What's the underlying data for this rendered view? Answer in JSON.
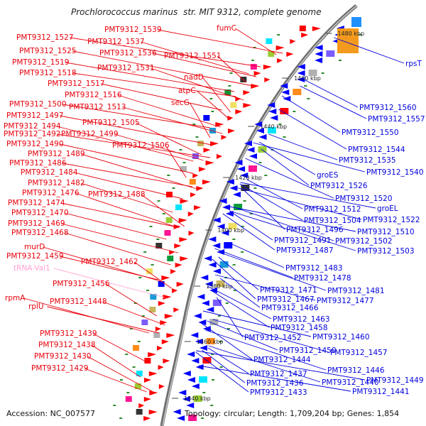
{
  "title_prefix": "Prochlorococcus marinus",
  "title_suffix": "str. MIT 9312, complete genome",
  "accession": "Accession: NC_007577",
  "topology": "Topology: circular; Length: 1,709,204 bp; Genes: 1,854",
  "colors": {
    "forward_label": "#e8000b",
    "reverse_label": "#0000dd",
    "rna_label": "#ff9fd0",
    "backbone": "#888888",
    "forward_arrow": "#ff0000",
    "reverse_arrow": "#0000ff",
    "tick_mark": "#2e8b2e"
  },
  "ticks": [
    {
      "label": "1480 kbp",
      "kbp": 1480
    },
    {
      "label": "1460 kbp",
      "kbp": 1460
    },
    {
      "label": "1440 kbp",
      "kbp": 1440
    },
    {
      "label": "1420 kbp",
      "kbp": 1420
    },
    {
      "label": "1400 kbp",
      "kbp": 1400
    },
    {
      "label": "1380 kbp",
      "kbp": 1380
    },
    {
      "label": "1360 kbp",
      "kbp": 1360
    },
    {
      "label": "1340 kbp",
      "kbp": 1340
    }
  ],
  "forward_labels": [
    {
      "text": "PMT9312_1539",
      "strand": "forward"
    },
    {
      "text": "fumC",
      "strand": "forward"
    },
    {
      "text": "PMT9312_1527",
      "strand": "forward"
    },
    {
      "text": "PMT9312_1537",
      "strand": "forward"
    },
    {
      "text": "PMT9312_1525",
      "strand": "forward"
    },
    {
      "text": "PMT9312_1536",
      "strand": "forward"
    },
    {
      "text": "PMT9312_1551",
      "strand": "forward"
    },
    {
      "text": "PMT9312_1519",
      "strand": "forward"
    },
    {
      "text": "PMT9312_1531",
      "strand": "forward"
    },
    {
      "text": "nadD",
      "strand": "forward"
    },
    {
      "text": "PMT9312_1518",
      "strand": "forward"
    },
    {
      "text": "PMT9312_1517",
      "strand": "forward"
    },
    {
      "text": "atpC",
      "strand": "forward"
    },
    {
      "text": "PMT9312_1516",
      "strand": "forward"
    },
    {
      "text": "secG",
      "strand": "forward"
    },
    {
      "text": "PMT9312_1500",
      "strand": "forward"
    },
    {
      "text": "PMT9312_1513",
      "strand": "forward"
    },
    {
      "text": "PMT9312_1497",
      "strand": "forward"
    },
    {
      "text": "PMT9312_1505",
      "strand": "forward"
    },
    {
      "text": "PMT9312_1494",
      "strand": "forward"
    },
    {
      "text": "PMT9312_1492",
      "strand": "forward"
    },
    {
      "text": "PMT9312_1499",
      "strand": "forward"
    },
    {
      "text": "PMT9312_1490",
      "strand": "forward"
    },
    {
      "text": "PMT9312_1506",
      "strand": "forward"
    },
    {
      "text": "PMT9312_1489",
      "strand": "forward"
    },
    {
      "text": "PMT9312_1486",
      "strand": "forward"
    },
    {
      "text": "PMT9312_1484",
      "strand": "forward"
    },
    {
      "text": "PMT9312_1482",
      "strand": "forward"
    },
    {
      "text": "PMT9312_1488",
      "strand": "forward"
    },
    {
      "text": "PMT9312_1476",
      "strand": "forward"
    },
    {
      "text": "PMT9312_1474",
      "strand": "forward"
    },
    {
      "text": "PMT9312_1470",
      "strand": "forward"
    },
    {
      "text": "PMT9312_1469",
      "strand": "forward"
    },
    {
      "text": "PMT9312_1468",
      "strand": "forward"
    },
    {
      "text": "murD",
      "strand": "forward"
    },
    {
      "text": "PMT9312_1459",
      "strand": "forward"
    },
    {
      "text": "PMT9312_1462",
      "strand": "forward"
    },
    {
      "text": "tRNA-Val1",
      "strand": "rna"
    },
    {
      "text": "PMT9312_1456",
      "strand": "forward"
    },
    {
      "text": "rpmA",
      "strand": "forward"
    },
    {
      "text": "PMT9312_1448",
      "strand": "forward"
    },
    {
      "text": "rplU",
      "strand": "forward"
    },
    {
      "text": "PMT9312_1439",
      "strand": "forward"
    },
    {
      "text": "PMT9312_1438",
      "strand": "forward"
    },
    {
      "text": "PMT9312_1430",
      "strand": "forward"
    },
    {
      "text": "PMT9312_1429",
      "strand": "forward"
    }
  ],
  "reverse_labels": [
    {
      "text": "rpsT"
    },
    {
      "text": "PMT9312_1560"
    },
    {
      "text": "PMT9312_1557"
    },
    {
      "text": "PMT9312_1550"
    },
    {
      "text": "PMT9312_1544"
    },
    {
      "text": "PMT9312_1535"
    },
    {
      "text": "PMT9312_1540"
    },
    {
      "text": "groES"
    },
    {
      "text": "PMT9312_1526"
    },
    {
      "text": "PMT9312_1520"
    },
    {
      "text": "groEL"
    },
    {
      "text": "PMT9312_1512"
    },
    {
      "text": "PMT9312_1522"
    },
    {
      "text": "PMT9312_1504"
    },
    {
      "text": "PMT9312_1496"
    },
    {
      "text": "PMT9312_1510"
    },
    {
      "text": "PMT9312_1491"
    },
    {
      "text": "PMT9312_1502"
    },
    {
      "text": "PMT9312_1487"
    },
    {
      "text": "PMT9312_1503"
    },
    {
      "text": "PMT9312_1483"
    },
    {
      "text": "PMT9312_1478"
    },
    {
      "text": "PMT9312_1471"
    },
    {
      "text": "PMT9312_1481"
    },
    {
      "text": "PMT9312_1467"
    },
    {
      "text": "PMT9312_1477"
    },
    {
      "text": "PMT9312_1466"
    },
    {
      "text": "PMT9312_1463"
    },
    {
      "text": "PMT9312_1458"
    },
    {
      "text": "PMT9312_1452"
    },
    {
      "text": "PMT9312_1460"
    },
    {
      "text": "PMT9312_1450"
    },
    {
      "text": "PMT9312_1457"
    },
    {
      "text": "PMT9312_1444"
    },
    {
      "text": "PMT9312_1446"
    },
    {
      "text": "PMT9312_1437"
    },
    {
      "text": "PMT9312_1449"
    },
    {
      "text": "PMT9312_1436"
    },
    {
      "text": "PMT9312_1440"
    },
    {
      "text": "PMT9312_1433"
    },
    {
      "text": "PMT9312_1441"
    }
  ]
}
